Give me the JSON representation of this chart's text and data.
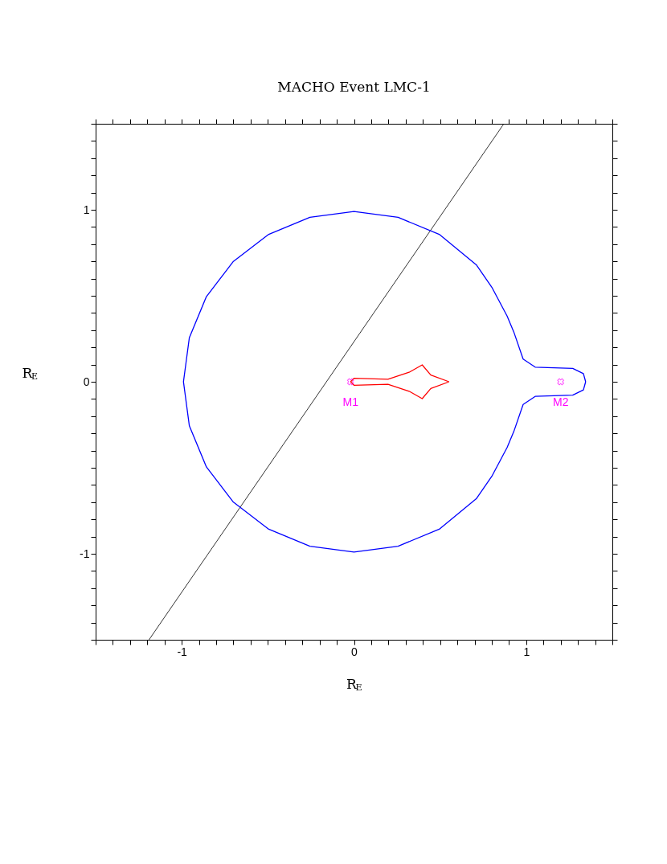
{
  "chart_data": {
    "type": "line",
    "title": "MACHO Event LMC-1",
    "xlabel": "R$_{E}$",
    "ylabel": "R$_{E}$",
    "xlim": [
      -1.5,
      1.5
    ],
    "ylim": [
      -1.5,
      1.5
    ],
    "xticks": [
      {
        "value": -1.5,
        "label": null
      },
      {
        "value": -1.4,
        "label": null
      },
      {
        "value": -1.3,
        "label": null
      },
      {
        "value": -1.2,
        "label": null
      },
      {
        "value": -1.1,
        "label": null
      },
      -1,
      {
        "value": -0.9,
        "label": null
      },
      {
        "value": -0.8,
        "label": null
      },
      {
        "value": -0.7,
        "label": null
      },
      {
        "value": -0.6,
        "label": null
      },
      {
        "value": -0.5,
        "label": null
      },
      {
        "value": -0.4,
        "label": null
      },
      {
        "value": -0.3,
        "label": null
      },
      {
        "value": -0.2,
        "label": null
      },
      {
        "value": -0.1,
        "label": null
      },
      0,
      {
        "value": 0.1,
        "label": null
      },
      {
        "value": 0.2,
        "label": null
      },
      {
        "value": 0.3,
        "label": null
      },
      {
        "value": 0.4,
        "label": null
      },
      {
        "value": 0.5,
        "label": null
      },
      {
        "value": 0.6,
        "label": null
      },
      {
        "value": 0.7,
        "label": null
      },
      {
        "value": 0.8,
        "label": null
      },
      {
        "value": 0.9,
        "label": null
      },
      1,
      {
        "value": 1.1,
        "label": null
      },
      {
        "value": 1.2,
        "label": null
      },
      {
        "value": 1.3,
        "label": null
      },
      {
        "value": 1.4,
        "label": null
      },
      {
        "value": 1.5,
        "label": null
      }
    ],
    "yticks": [
      {
        "value": -1.5,
        "label": null
      },
      {
        "value": -1.4,
        "label": null
      },
      {
        "value": -1.3,
        "label": null
      },
      {
        "value": -1.2,
        "label": null
      },
      {
        "value": -1.1,
        "label": null
      },
      -1,
      {
        "value": -0.9,
        "label": null
      },
      {
        "value": -0.8,
        "label": null
      },
      {
        "value": -0.7,
        "label": null
      },
      {
        "value": -0.6,
        "label": null
      },
      {
        "value": -0.5,
        "label": null
      },
      {
        "value": -0.4,
        "label": null
      },
      {
        "value": -0.3,
        "label": null
      },
      {
        "value": -0.2,
        "label": null
      },
      {
        "value": -0.1,
        "label": null
      },
      0,
      {
        "value": 0.1,
        "label": null
      },
      {
        "value": 0.2,
        "label": null
      },
      {
        "value": 0.3,
        "label": null
      },
      {
        "value": 0.4,
        "label": null
      },
      {
        "value": 0.5,
        "label": null
      },
      {
        "value": 0.6,
        "label": null
      },
      {
        "value": 0.7,
        "label": null
      },
      {
        "value": 0.8,
        "label": null
      },
      {
        "value": 0.9,
        "label": null
      },
      1,
      {
        "value": 1.1,
        "label": null
      },
      {
        "value": 1.2,
        "label": null
      },
      {
        "value": 1.3,
        "label": null
      },
      {
        "value": 1.4,
        "label": null
      },
      {
        "value": 1.5,
        "label": null
      }
    ],
    "grid": false,
    "series": [
      {
        "color": "#000000",
        "x": [
          -1.19,
          0.87
        ],
        "values": [
          -1.5,
          1.5
        ]
      },
      {
        "color": "#0000ff",
        "x": [
          -0.99,
          -0.956,
          -0.857,
          -0.7,
          -0.495,
          -0.256,
          0.0,
          0.256,
          0.495,
          0.71,
          0.8,
          0.889,
          0.928,
          0.982,
          1.052,
          1.27,
          1.332,
          1.345,
          null,
          -0.99,
          -0.956,
          -0.857,
          -0.7,
          -0.495,
          -0.256,
          0.0,
          0.256,
          0.495,
          0.71,
          0.8,
          0.889,
          0.928,
          0.982,
          1.052,
          1.27,
          1.332,
          1.345
        ],
        "values": [
          0.0,
          0.256,
          0.495,
          0.7,
          0.857,
          0.956,
          0.99,
          0.956,
          0.857,
          0.68,
          0.55,
          0.382,
          0.289,
          0.132,
          0.085,
          0.078,
          0.047,
          0.0,
          null,
          0.0,
          -0.256,
          -0.495,
          -0.7,
          -0.857,
          -0.956,
          -0.99,
          -0.956,
          -0.857,
          -0.68,
          -0.55,
          -0.382,
          -0.289,
          -0.132,
          -0.085,
          -0.078,
          -0.047,
          0.0
        ]
      },
      {
        "color": "#ff0000",
        "x": [
          -0.02,
          0.0,
          0.197,
          0.32,
          0.396,
          0.446,
          0.552,
          null,
          -0.02,
          0.0,
          0.197,
          0.32,
          0.396,
          0.446,
          0.552
        ],
        "values": [
          0.0,
          0.02,
          0.015,
          0.055,
          0.098,
          0.039,
          0.0,
          null,
          0.0,
          -0.02,
          -0.015,
          -0.055,
          -0.098,
          -0.039,
          0.0
        ]
      },
      {
        "type": "scatter",
        "color": "#ff00ff",
        "marker": "cross",
        "x": [
          -0.02,
          1.2
        ],
        "values": [
          0.0,
          0.0
        ]
      }
    ],
    "annotations": [
      {
        "text": "M1",
        "x": -0.02,
        "y": 0.0
      },
      {
        "text": "M2",
        "x": 1.2,
        "y": 0.0
      }
    ]
  }
}
